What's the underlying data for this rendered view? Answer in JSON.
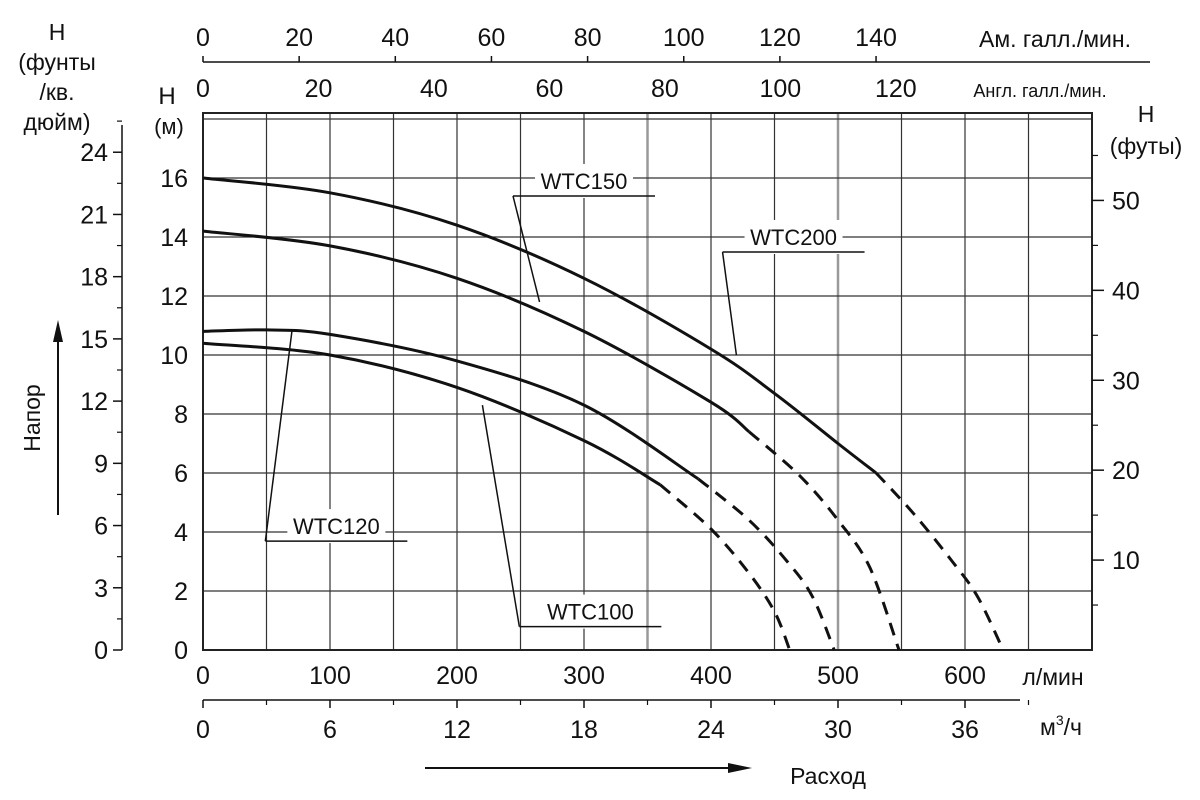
{
  "chart_data": {
    "type": "line",
    "title": "",
    "xlim": [
      0,
      700
    ],
    "ylim": [
      0,
      18
    ],
    "grid": true,
    "x_axis_main": {
      "label": "л/мин",
      "ticks": [
        0,
        100,
        200,
        300,
        400,
        500,
        600
      ]
    },
    "x_axis_m3h": {
      "label_base": "м",
      "label_sup": "3",
      "label_tail": "/ч",
      "ticks": [
        0,
        6,
        12,
        18,
        24,
        30,
        36
      ]
    },
    "x_axis_us_gpm": {
      "label": "Ам. галл./мин.",
      "ticks": [
        0,
        20,
        40,
        60,
        80,
        100,
        120,
        140
      ]
    },
    "x_axis_uk_gpm": {
      "label": "Англ. галл./мин.",
      "ticks": [
        0,
        20,
        40,
        60,
        80,
        100,
        120
      ]
    },
    "y_axis_m": {
      "label_line1": "H",
      "label_line2": "(м)",
      "ticks": [
        0,
        2,
        4,
        6,
        8,
        10,
        12,
        14,
        16
      ]
    },
    "y_axis_psi": {
      "label_lines": [
        "H",
        "(фунты",
        "/кв.",
        "дюйм)"
      ],
      "ticks": [
        0,
        3,
        6,
        9,
        12,
        15,
        18,
        21,
        24
      ]
    },
    "y_axis_ft": {
      "label_lines": [
        "H",
        "(футы)"
      ],
      "ticks": [
        10,
        20,
        30,
        40,
        50
      ]
    },
    "side_label": "Напор",
    "flow_label": "Расход",
    "series": [
      {
        "name": "WTC200",
        "solid": [
          [
            0,
            16.0
          ],
          [
            100,
            15.5
          ],
          [
            200,
            14.4
          ],
          [
            300,
            12.6
          ],
          [
            400,
            10.2
          ],
          [
            450,
            8.7
          ],
          [
            500,
            7.0
          ],
          [
            530,
            6.0
          ]
        ],
        "dashed": [
          [
            530,
            6.0
          ],
          [
            560,
            4.6
          ],
          [
            590,
            3.0
          ],
          [
            610,
            1.8
          ],
          [
            630,
            0
          ]
        ]
      },
      {
        "name": "WTC150",
        "solid": [
          [
            0,
            14.2
          ],
          [
            100,
            13.7
          ],
          [
            200,
            12.6
          ],
          [
            300,
            10.8
          ],
          [
            400,
            8.4
          ],
          [
            430,
            7.4
          ]
        ],
        "dashed": [
          [
            430,
            7.4
          ],
          [
            470,
            5.9
          ],
          [
            500,
            4.4
          ],
          [
            525,
            2.8
          ],
          [
            548,
            0
          ]
        ]
      },
      {
        "name": "WTC120",
        "solid": [
          [
            0,
            10.8
          ],
          [
            50,
            10.85
          ],
          [
            100,
            10.7
          ],
          [
            200,
            9.8
          ],
          [
            300,
            8.3
          ],
          [
            390,
            5.8
          ]
        ],
        "dashed": [
          [
            390,
            5.8
          ],
          [
            430,
            4.4
          ],
          [
            460,
            3.0
          ],
          [
            480,
            1.8
          ],
          [
            497,
            0
          ]
        ]
      },
      {
        "name": "WTC100",
        "solid": [
          [
            0,
            10.4
          ],
          [
            100,
            10.0
          ],
          [
            200,
            8.9
          ],
          [
            300,
            7.1
          ],
          [
            360,
            5.6
          ]
        ],
        "dashed": [
          [
            360,
            5.6
          ],
          [
            400,
            4.1
          ],
          [
            430,
            2.6
          ],
          [
            450,
            1.3
          ],
          [
            462,
            0
          ]
        ]
      }
    ],
    "annotations": [
      {
        "text": "WTC150",
        "x": 300,
        "y": 15.9,
        "target": [
          265,
          11.8
        ]
      },
      {
        "text": "WTC200",
        "x": 465,
        "y": 14.0,
        "target": [
          420,
          10.0
        ]
      },
      {
        "text": "WTC120",
        "x": 105,
        "y": 4.2,
        "target": [
          70,
          10.8
        ]
      },
      {
        "text": "WTC100",
        "x": 305,
        "y": 1.3,
        "target": [
          220,
          8.3
        ]
      }
    ]
  }
}
